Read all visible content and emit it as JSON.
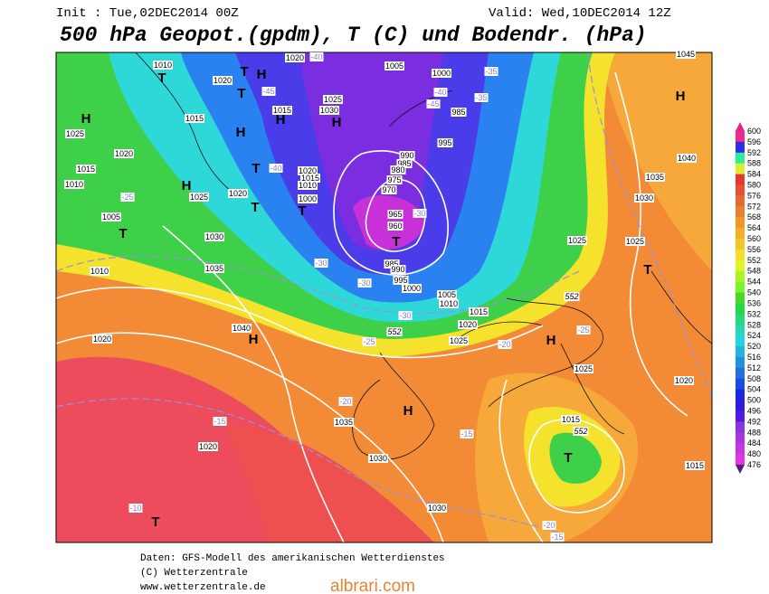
{
  "header": {
    "init": "Init : Tue,02DEC2014 00Z",
    "valid": "Valid: Wed,10DEC2014 12Z",
    "title": "500 hPa Geopot.(gpdm), T (C) und Bodendr. (hPa)"
  },
  "legend": {
    "labels": [
      600,
      596,
      592,
      588,
      584,
      580,
      576,
      572,
      568,
      564,
      560,
      556,
      552,
      548,
      544,
      540,
      536,
      532,
      528,
      524,
      520,
      516,
      512,
      508,
      504,
      500,
      496,
      492,
      488,
      484,
      480,
      476
    ]
  },
  "map": {
    "pressure_labels": [
      "1010",
      "1020",
      "1015",
      "1025",
      "1020",
      "1015",
      "1010",
      "1005",
      "1010",
      "1020",
      "1030",
      "1035",
      "1040",
      "1020",
      "1025",
      "1020",
      "1015",
      "1010",
      "1000",
      "1015",
      "1030",
      "1025",
      "1020",
      "1005",
      "1000",
      "985",
      "995",
      "990",
      "985",
      "980",
      "975",
      "970",
      "965",
      "960",
      "985",
      "990",
      "995",
      "1000",
      "1005",
      "1010",
      "1015",
      "1020",
      "1025",
      "1025",
      "1025",
      "1030",
      "1035",
      "1040",
      "1045",
      "1025",
      "1020",
      "1015",
      "1015",
      "1035",
      "1030",
      "1030",
      "1020",
      "552",
      "552",
      "552"
    ],
    "temperature_labels": [
      "-40",
      "-45",
      "-40",
      "-40",
      "-35",
      "-35",
      "-30",
      "-30",
      "-30",
      "-25",
      "-20",
      "-25",
      "-20",
      "-15",
      "-15",
      "-20",
      "-15",
      "-10",
      "-25",
      "-45",
      "-30"
    ],
    "markers": [
      "T",
      "H",
      "T",
      "H",
      "T",
      "H",
      "H",
      "H",
      "T",
      "H",
      "T",
      "T",
      "T",
      "T",
      "H",
      "T",
      "H",
      "H",
      "H",
      "T",
      "T"
    ]
  },
  "footer": {
    "lines": [
      "Daten: GFS-Modell des amerikanischen Wetterdienstes",
      "(C) Wetterzentrale",
      "www.wetterzentrale.de"
    ]
  },
  "watermark": "albrari.com"
}
